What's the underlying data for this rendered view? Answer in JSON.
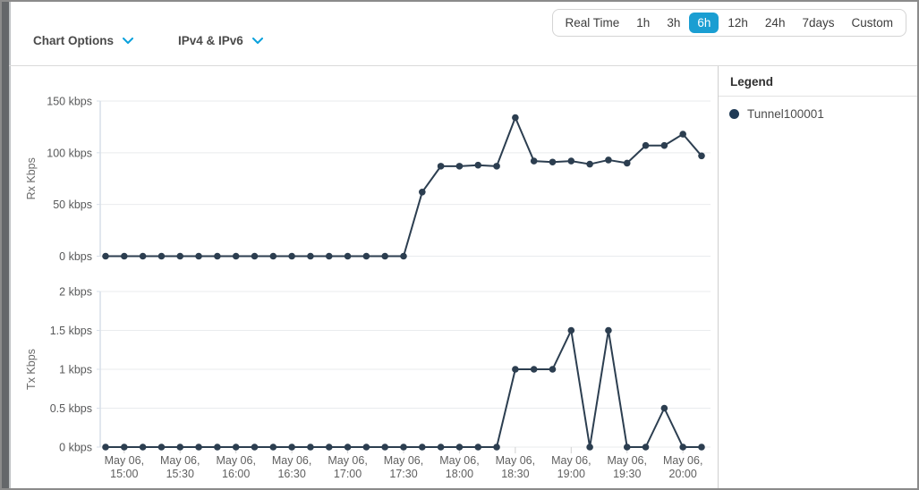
{
  "header": {
    "chart_options_label": "Chart Options",
    "ip_filter_label": "IPv4 & IPv6",
    "time_range": {
      "options": [
        "Real Time",
        "1h",
        "3h",
        "6h",
        "12h",
        "24h",
        "7days",
        "Custom"
      ],
      "selected": "6h",
      "selected_color": "#1a9ed2"
    }
  },
  "legend": {
    "title": "Legend",
    "items": [
      {
        "label": "Tunnel100001",
        "color": "#1f3a55"
      }
    ]
  },
  "colors": {
    "series_line": "#2c3e50",
    "gridline": "#e9ebee",
    "axis_line": "#d7dfe8",
    "tick_text": "#58595a",
    "dropdown_chevron": "#0aa1dc"
  },
  "chart_data": [
    {
      "type": "line",
      "name": "rx",
      "ylabel": "Rx Kbps",
      "ylim": [
        0,
        150
      ],
      "grid": true,
      "x": [
        "14:50",
        "15:00",
        "15:10",
        "15:20",
        "15:30",
        "15:40",
        "15:50",
        "16:00",
        "16:10",
        "16:20",
        "16:30",
        "16:40",
        "16:50",
        "17:00",
        "17:10",
        "17:20",
        "17:30",
        "17:40",
        "17:50",
        "18:00",
        "18:10",
        "18:20",
        "18:30",
        "18:40",
        "18:50",
        "19:00",
        "19:10",
        "19:20",
        "19:30",
        "19:40",
        "19:50",
        "20:00",
        "20:10"
      ],
      "series": [
        {
          "name": "Tunnel100001",
          "color": "#2c3e50",
          "values": [
            0,
            0,
            0,
            0,
            0,
            0,
            0,
            0,
            0,
            0,
            0,
            0,
            0,
            0,
            0,
            0,
            0,
            62,
            87,
            87,
            88,
            87,
            134,
            92,
            91,
            92,
            89,
            93,
            90,
            107,
            107,
            118,
            97
          ]
        }
      ],
      "y_ticks": [
        {
          "value": 0,
          "label": "0 kbps"
        },
        {
          "value": 50,
          "label": "50 kbps"
        },
        {
          "value": 100,
          "label": "100 kbps"
        },
        {
          "value": 150,
          "label": "150 kbps"
        }
      ],
      "x_tick_labels": []
    },
    {
      "type": "line",
      "name": "tx",
      "ylabel": "Tx Kbps",
      "ylim": [
        0,
        2
      ],
      "grid": true,
      "x": [
        "14:50",
        "15:00",
        "15:10",
        "15:20",
        "15:30",
        "15:40",
        "15:50",
        "16:00",
        "16:10",
        "16:20",
        "16:30",
        "16:40",
        "16:50",
        "17:00",
        "17:10",
        "17:20",
        "17:30",
        "17:40",
        "17:50",
        "18:00",
        "18:10",
        "18:20",
        "18:30",
        "18:40",
        "18:50",
        "19:00",
        "19:10",
        "19:20",
        "19:30",
        "19:40",
        "19:50",
        "20:00",
        "20:10"
      ],
      "series": [
        {
          "name": "Tunnel100001",
          "color": "#2c3e50",
          "values": [
            0,
            0,
            0,
            0,
            0,
            0,
            0,
            0,
            0,
            0,
            0,
            0,
            0,
            0,
            0,
            0,
            0,
            0,
            0,
            0,
            0,
            0,
            1,
            1,
            1,
            1.5,
            0,
            1.5,
            0,
            0,
            0.5,
            0,
            0
          ]
        }
      ],
      "y_ticks": [
        {
          "value": 0,
          "label": "0 kbps"
        },
        {
          "value": 0.5,
          "label": "0.5 kbps"
        },
        {
          "value": 1,
          "label": "1 kbps"
        },
        {
          "value": 1.5,
          "label": "1.5 kbps"
        },
        {
          "value": 2,
          "label": "2 kbps"
        }
      ],
      "x_tick_labels": [
        {
          "date": "May 06,",
          "time": "15:00"
        },
        {
          "date": "May 06,",
          "time": "15:30"
        },
        {
          "date": "May 06,",
          "time": "16:00"
        },
        {
          "date": "May 06,",
          "time": "16:30"
        },
        {
          "date": "May 06,",
          "time": "17:00"
        },
        {
          "date": "May 06,",
          "time": "17:30"
        },
        {
          "date": "May 06,",
          "time": "18:00"
        },
        {
          "date": "May 06,",
          "time": "18:30"
        },
        {
          "date": "May 06,",
          "time": "19:00"
        },
        {
          "date": "May 06,",
          "time": "19:30"
        },
        {
          "date": "May 06,",
          "time": "20:00"
        }
      ]
    }
  ]
}
